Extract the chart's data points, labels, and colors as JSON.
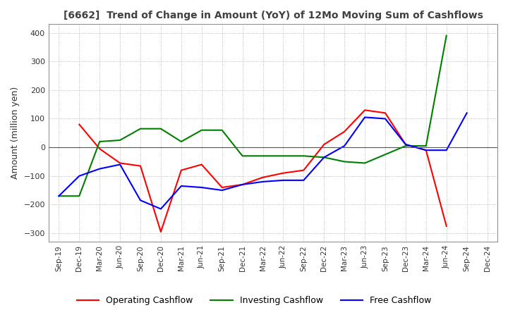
{
  "title": "[6662]  Trend of Change in Amount (YoY) of 12Mo Moving Sum of Cashflows",
  "ylabel": "Amount (million yen)",
  "ylim": [
    -330,
    430
  ],
  "yticks": [
    -300,
    -200,
    -100,
    0,
    100,
    200,
    300,
    400
  ],
  "x_labels": [
    "Sep-19",
    "Dec-19",
    "Mar-20",
    "Jun-20",
    "Sep-20",
    "Dec-20",
    "Mar-21",
    "Jun-21",
    "Sep-21",
    "Dec-21",
    "Mar-22",
    "Jun-22",
    "Sep-22",
    "Dec-22",
    "Mar-23",
    "Jun-23",
    "Sep-23",
    "Dec-23",
    "Mar-24",
    "Jun-24",
    "Sep-24",
    "Dec-24"
  ],
  "operating": [
    null,
    80,
    -5,
    -55,
    -65,
    -295,
    -80,
    -60,
    -140,
    -130,
    -105,
    -90,
    -80,
    10,
    55,
    130,
    120,
    10,
    -10,
    -275,
    null,
    null
  ],
  "investing": [
    -170,
    -170,
    20,
    25,
    65,
    65,
    20,
    60,
    60,
    -30,
    -30,
    -30,
    -30,
    -35,
    -50,
    -55,
    -25,
    5,
    5,
    390,
    null,
    null
  ],
  "free": [
    -170,
    -100,
    -75,
    -60,
    -185,
    -215,
    -135,
    -140,
    -150,
    -130,
    -120,
    -115,
    -115,
    -35,
    5,
    105,
    100,
    10,
    -10,
    -10,
    120,
    null
  ],
  "colors": {
    "operating": "#ff0000",
    "investing": "#008000",
    "free": "#0000ff"
  },
  "legend": [
    "Operating Cashflow",
    "Investing Cashflow",
    "Free Cashflow"
  ],
  "background": "#ffffff",
  "grid_color": "#aaaaaa",
  "title_color": "#404040"
}
